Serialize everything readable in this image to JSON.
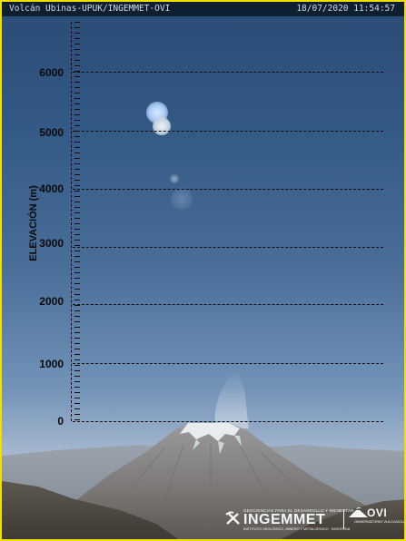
{
  "overlay": {
    "camera_label": "Volcán Ubinas-UPUK/INGEMMET-OVI",
    "datetime": "18/07/2020 11:54:57"
  },
  "scale": {
    "axis_title": "ELEVACIÓN (m)",
    "ticks": [
      "6000",
      "5000",
      "4000",
      "3000",
      "2000",
      "1000",
      "0"
    ]
  },
  "logos": {
    "ingemmet_top": "GEOCIENCIAS PARA EL DESARROLLO Y BIENESTAR",
    "ingemmet_name": "INGEMMET",
    "ingemmet_sub": "INSTITUTO GEOLÓGICO, MINERO Y METALÚRGICO · INVESTIGA",
    "ovi_name": "OVI",
    "ovi_sub": "OBSERVATORIO VULCANOLÓGICO"
  },
  "colors": {
    "frame": "#f2e000",
    "sky_top": "#2a4c75",
    "sky_horizon": "#c4ccd6",
    "gridline": "#101010"
  }
}
